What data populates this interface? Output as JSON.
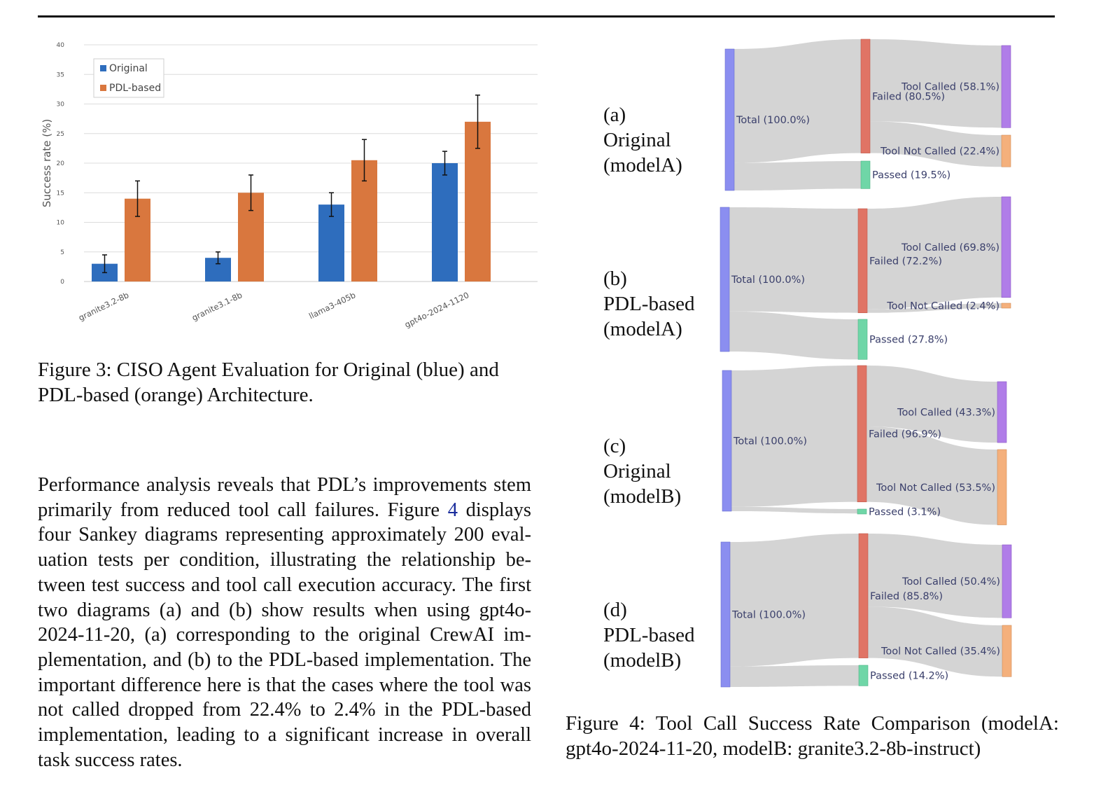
{
  "chart_data": [
    {
      "type": "bar",
      "categories": [
        "granite3.2-8b",
        "granite3.1-8b",
        "llama3-405b",
        "gpt4o-2024-1120"
      ],
      "series": [
        {
          "name": "Original",
          "color": "#2e6dbd",
          "values": [
            3,
            4,
            13,
            20
          ],
          "err_low": [
            1.5,
            1,
            2,
            2
          ],
          "err_high": [
            1.5,
            1,
            2,
            2
          ]
        },
        {
          "name": "PDL-based",
          "color": "#d9773e",
          "values": [
            14,
            15,
            20.5,
            27
          ],
          "err_low": [
            3,
            3,
            3.5,
            4.5
          ],
          "err_high": [
            3,
            3,
            3.5,
            4.5
          ]
        }
      ],
      "ylabel": "Success rate (%)",
      "xlabel": "",
      "ylim": [
        0,
        40
      ],
      "yticks": [
        0,
        5,
        10,
        15,
        20,
        25,
        30,
        35,
        40
      ],
      "grid": true,
      "legend": "top-left"
    },
    {
      "type": "sankey",
      "colors": {
        "total": "#8b8ef0",
        "failed": "#e07465",
        "passed": "#6fd6a7",
        "called": "#b07de8",
        "not_called": "#f4b07c",
        "link": "#cfcfcf"
      },
      "diagrams": [
        {
          "label_letter": "(a)",
          "label_line1": "Original",
          "label_line2": "(modelA)",
          "nodes": {
            "total": "Total (100.0%)",
            "failed": "Failed (80.5%)",
            "passed": "Passed (19.5%)",
            "called": "Tool Called (58.1%)",
            "not_called": "Tool Not Called (22.4%)"
          },
          "values": {
            "failed": 80.5,
            "passed": 19.5,
            "called": 58.1,
            "not_called": 22.4
          }
        },
        {
          "label_letter": "(b)",
          "label_line1": "PDL-based",
          "label_line2": "(modelA)",
          "nodes": {
            "total": "Total (100.0%)",
            "failed": "Failed (72.2%)",
            "passed": "Passed (27.8%)",
            "called": "Tool Called (69.8%)",
            "not_called": "Tool Not Called (2.4%)"
          },
          "values": {
            "failed": 72.2,
            "passed": 27.8,
            "called": 69.8,
            "not_called": 2.4
          }
        },
        {
          "label_letter": "(c)",
          "label_line1": "Original",
          "label_line2": "(modelB)",
          "nodes": {
            "total": "Total (100.0%)",
            "failed": "Failed (96.9%)",
            "passed": "Passed (3.1%)",
            "called": "Tool Called (43.3%)",
            "not_called": "Tool Not Called (53.5%)"
          },
          "values": {
            "failed": 96.9,
            "passed": 3.1,
            "called": 43.3,
            "not_called": 53.5
          }
        },
        {
          "label_letter": "(d)",
          "label_line1": "PDL-based",
          "label_line2": "(modelB)",
          "nodes": {
            "total": "Total (100.0%)",
            "failed": "Failed (85.8%)",
            "passed": "Passed (14.2%)",
            "called": "Tool Called (50.4%)",
            "not_called": "Tool Not Called (35.4%)"
          },
          "values": {
            "failed": 85.8,
            "passed": 14.2,
            "called": 50.4,
            "not_called": 35.4
          }
        }
      ]
    }
  ],
  "fig3_caption": "Figure 3: CISO Agent Evaluation for Original (blue) and PDL-based (orange) Architecture.",
  "body": {
    "part1": "Performance analysis reveals that PDL’s improvements stem primarily from reduced tool call failures. Figure ",
    "ref": "4",
    "part2": " displays four Sankey diagrams representing approximately 200 eval­uation tests per condition, illustrating the relationship be­tween test success and tool call execution accuracy. The first two diagrams (a) and (b) show results when using gpt4o-2024-11-20, (a) corresponding to the original CrewAI im­plementation, and (b) to the PDL-based implementation. The important difference here is that the cases where the tool was not called dropped from 22.4% to 2.4% in the PDL-based implementation, leading to a significant increase in overall task success rates."
  },
  "fig4_caption": "Figure 4: Tool Call Success Rate Comparison (modelA: gpt4o-2024-11-20, modelB: granite3.2-8b-instruct)"
}
